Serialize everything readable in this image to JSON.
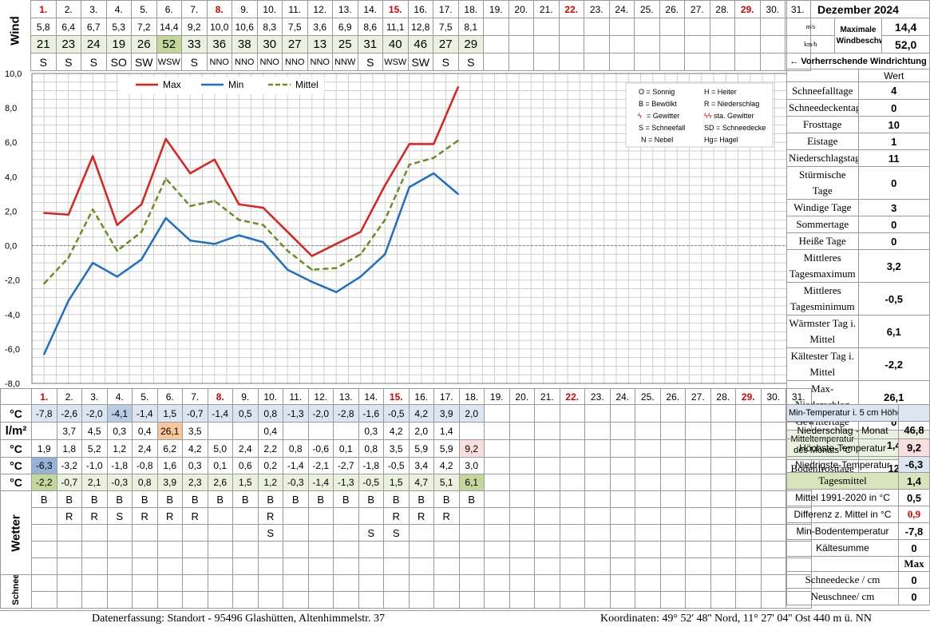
{
  "month_title": "Dezember 2024",
  "days": [
    "1.",
    "2.",
    "3.",
    "4.",
    "5.",
    "6.",
    "7.",
    "8.",
    "9.",
    "10.",
    "11.",
    "12.",
    "13.",
    "14.",
    "15.",
    "16.",
    "17.",
    "18.",
    "19.",
    "20.",
    "21.",
    "22.",
    "23.",
    "24.",
    "25.",
    "26.",
    "27.",
    "28.",
    "29.",
    "30.",
    "31."
  ],
  "red_days": [
    0,
    7,
    14,
    21,
    28
  ],
  "wind": {
    "label": "Wind",
    "ms": [
      "5,8",
      "6,4",
      "6,7",
      "5,3",
      "7,2",
      "14,4",
      "9,2",
      "10,0",
      "10,6",
      "8,3",
      "7,5",
      "3,6",
      "6,9",
      "8,6",
      "11,1",
      "12,8",
      "7,5",
      "8,1"
    ],
    "kmh": [
      "21",
      "23",
      "24",
      "19",
      "26",
      "52",
      "33",
      "36",
      "38",
      "30",
      "27",
      "13",
      "25",
      "31",
      "40",
      "46",
      "27",
      "29"
    ],
    "dir": [
      "S",
      "S",
      "S",
      "SO",
      "SW",
      "WSW",
      "S",
      "NNO",
      "NNO",
      "NNO",
      "NNO",
      "NNO",
      "NNW",
      "S",
      "WSW",
      "SW",
      "S",
      "S"
    ],
    "unit_ms": "m/s",
    "unit_kmh": "km/h",
    "max_label": "Maximale Windbeschwindigkeit",
    "max_ms": "14,4",
    "max_kmh": "52,0",
    "dir_label": "← Vorherrschende Windrichtung"
  },
  "chart_data": {
    "type": "line",
    "x": [
      1,
      2,
      3,
      4,
      5,
      6,
      7,
      8,
      9,
      10,
      11,
      12,
      13,
      14,
      15,
      16,
      17,
      18
    ],
    "series": [
      {
        "name": "Max",
        "color": "#e0201a",
        "dash": false,
        "values": [
          1.9,
          1.8,
          5.2,
          1.2,
          2.4,
          6.2,
          4.2,
          5.0,
          2.4,
          2.2,
          0.8,
          -0.6,
          0.1,
          0.8,
          3.5,
          5.9,
          5.9,
          9.2
        ]
      },
      {
        "name": "Min",
        "color": "#1f6fc4",
        "dash": false,
        "values": [
          -6.3,
          -3.2,
          -1.0,
          -1.8,
          -0.8,
          1.6,
          0.3,
          0.1,
          0.6,
          0.2,
          -1.4,
          -2.1,
          -2.7,
          -1.8,
          -0.5,
          3.4,
          4.2,
          3.0
        ]
      },
      {
        "name": "Mittel",
        "color": "#6b8e23",
        "dash": true,
        "values": [
          -2.2,
          -0.7,
          2.1,
          -0.3,
          0.8,
          3.9,
          2.3,
          2.6,
          1.5,
          1.2,
          -0.3,
          -1.4,
          -1.3,
          -0.5,
          1.5,
          4.7,
          5.1,
          6.1
        ]
      }
    ],
    "ylim": [
      -8,
      10
    ],
    "yticks": [
      "10,0",
      "8,0",
      "6,0",
      "4,0",
      "2,0",
      "0,0",
      "-2,0",
      "-4,0",
      "-6,0",
      "-8,0"
    ],
    "legend": "top-left"
  },
  "legend_box": [
    [
      "O = Sonnig",
      "H = Heiter"
    ],
    [
      "B = Bewölkt",
      "R = Niederschlag"
    ],
    [
      "= Gewitter",
      "sta. Gewitter"
    ],
    [
      "S = Schneefall",
      "SD = Schneedecke"
    ],
    [
      "N = Nebel",
      "Hg= Hagel"
    ]
  ],
  "summary": {
    "header": "Wert",
    "rows": [
      {
        "label": "Schneefalltage",
        "value": "4"
      },
      {
        "label": "Schneedeckentage",
        "value": "0"
      },
      {
        "label": "Frosttage",
        "value": "10"
      },
      {
        "label": "Eistage",
        "value": "1"
      },
      {
        "label": "Niederschlagstage",
        "value": "11"
      },
      {
        "label": "Stürmische Tage",
        "value": "0"
      },
      {
        "label": "Windige Tage",
        "value": "3"
      },
      {
        "label": "Sommertage",
        "value": "0"
      },
      {
        "label": "Heiße Tage",
        "value": "0"
      },
      {
        "label": "Mittleres Tagesmaximum",
        "value": "3,2"
      },
      {
        "label": "Mittleres Tagesminimum",
        "value": "-0,5"
      },
      {
        "label": "Wärmster Tag i. Mittel",
        "value": "6,1"
      },
      {
        "label": "Kältester Tag i. Mittel",
        "value": "-2,2"
      },
      {
        "label": "Max-Niederschlag",
        "value": "26,1"
      },
      {
        "label": "Gewittertage",
        "value": "0"
      },
      {
        "label": "Mitteltemperatur des Monats °C",
        "value": "1,4"
      },
      {
        "label": "Bodenfrosttage",
        "value": "12"
      }
    ]
  },
  "bottom": {
    "soil_unit": "°C",
    "soil": [
      "-7,8",
      "-2,6",
      "-2,0",
      "-4,1",
      "-1,4",
      "1,5",
      "-0,7",
      "-1,4",
      "0,5",
      "0,8",
      "-1,3",
      "-2,0",
      "-2,8",
      "-1,6",
      "-0,5",
      "4,2",
      "3,9",
      "2,0"
    ],
    "precip_unit": "l/m²",
    "precip": [
      "",
      "3,7",
      "4,5",
      "0,3",
      "0,4",
      "26,1",
      "3,5",
      "",
      "",
      "0,4",
      "",
      "",
      "",
      "0,3",
      "4,2",
      "2,0",
      "1,4",
      ""
    ],
    "max_unit": "°C",
    "max": [
      "1,9",
      "1,8",
      "5,2",
      "1,2",
      "2,4",
      "6,2",
      "4,2",
      "5,0",
      "2,4",
      "2,2",
      "0,8",
      "-0,6",
      "0,1",
      "0,8",
      "3,5",
      "5,9",
      "5,9",
      "9,2"
    ],
    "min_unit": "°C",
    "min": [
      "-6,3",
      "-3,2",
      "-1,0",
      "-1,8",
      "-0,8",
      "1,6",
      "0,3",
      "0,1",
      "0,6",
      "0,2",
      "-1,4",
      "-2,1",
      "-2,7",
      "-1,8",
      "-0,5",
      "3,4",
      "4,2",
      "3,0"
    ],
    "mean_unit": "°C",
    "mean": [
      "-2,2",
      "-0,7",
      "2,1",
      "-0,3",
      "0,8",
      "3,9",
      "2,3",
      "2,6",
      "1,5",
      "1,2",
      "-0,3",
      "-1,4",
      "-1,3",
      "-0,5",
      "1,5",
      "4,7",
      "5,1",
      "6,1"
    ],
    "wetter_label": "Wetter",
    "wetter1": [
      "B",
      "B",
      "B",
      "B",
      "B",
      "B",
      "B",
      "B",
      "B",
      "B",
      "B",
      "B",
      "B",
      "B",
      "B",
      "B",
      "B",
      "B"
    ],
    "wetter2": [
      "",
      "R",
      "R",
      "S",
      "R",
      "R",
      "R",
      "",
      "",
      "R",
      "",
      "",
      "",
      "",
      "R",
      "R",
      "R",
      ""
    ],
    "wetter3": [
      "",
      "",
      "",
      "",
      "",
      "",
      "",
      "",
      "",
      "S",
      "",
      "",
      "",
      "S",
      "S",
      "",
      "",
      ""
    ],
    "schnee_label": "Schnee",
    "right": [
      {
        "label": "Min-Temperatur i. 5 cm Höhe",
        "value": ""
      },
      {
        "label": "Niederschlag - Monat",
        "value": "46,8"
      },
      {
        "label": "Höchste-Temperatur",
        "value": "9,2"
      },
      {
        "label": "Niedrigste-Temperatur",
        "value": "-6,3"
      },
      {
        "label": "Tagesmittel",
        "value": "1,4"
      },
      {
        "label": "Mittel 1991-2020 in °C",
        "value": "0,5"
      },
      {
        "label": "Differenz z. Mittel in °C",
        "value": "0,9"
      },
      {
        "label": "Min-Bodentemperatur",
        "value": "-7,8"
      },
      {
        "label": "Kältesumme",
        "value": "0"
      },
      {
        "label": "",
        "value": "Max"
      },
      {
        "label": "Schneedecke / cm",
        "value": "0"
      },
      {
        "label": "Neuschnee/ cm",
        "value": "0"
      }
    ]
  },
  "footer": {
    "left": "Datenerfassung:  Standort -  95496  Glashütten, Altenhimmelstr. 37",
    "right": "Koordinaten:  49° 52' 48'' Nord,   11° 27' 04'' Ost   440 m ü. NN"
  }
}
